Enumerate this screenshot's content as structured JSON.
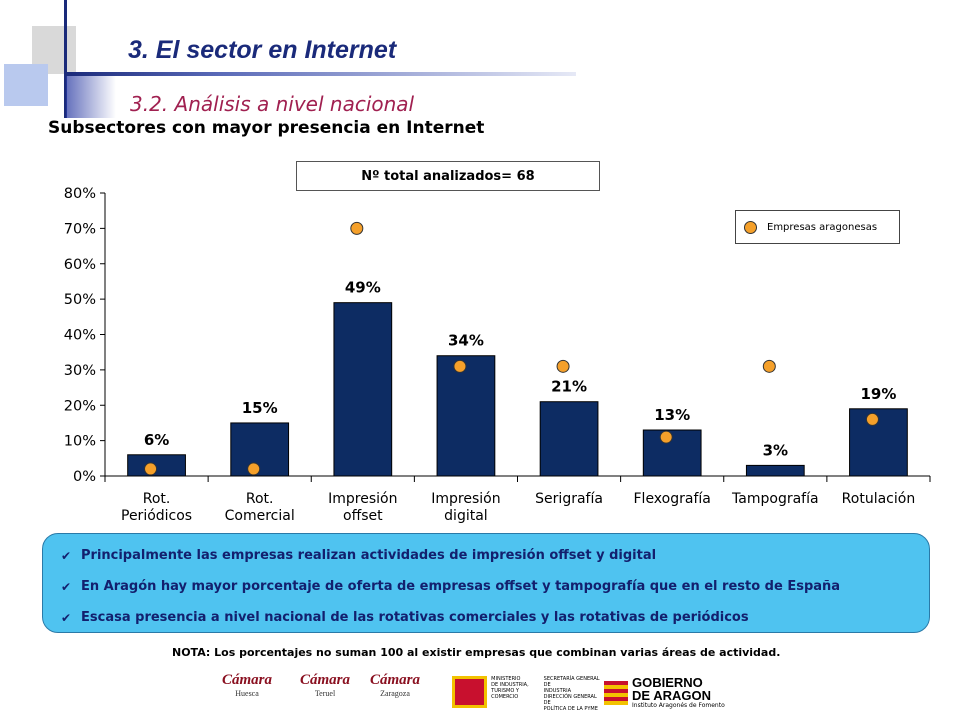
{
  "header": {
    "title": "3. El sector en Internet",
    "subtitle": "3.2. Análisis a nivel nacional"
  },
  "chart_heading": "Subsectores con mayor presencia en Internet",
  "total_box": "Nº total analizados= 68",
  "chart_data": {
    "type": "bar",
    "categories": [
      [
        "Rot.",
        "Periódicos"
      ],
      [
        "Rot.",
        "Comercial"
      ],
      [
        "Impresión",
        "offset"
      ],
      [
        "Impresión",
        "digital"
      ],
      [
        "Serigrafía"
      ],
      [
        "Flexografía"
      ],
      [
        "Tampografía"
      ],
      [
        "Rotulación"
      ]
    ],
    "values": [
      6,
      15,
      49,
      34,
      21,
      13,
      3,
      19
    ],
    "data_labels": [
      "6%",
      "15%",
      "49%",
      "34%",
      "21%",
      "13%",
      "3%",
      "19%"
    ],
    "series": [
      {
        "name": "",
        "kind": "bar",
        "values": [
          6,
          15,
          49,
          34,
          21,
          13,
          3,
          19
        ],
        "color": "#0d2c63"
      },
      {
        "name": "Empresas aragonesas",
        "kind": "marker",
        "values": [
          2,
          2,
          70,
          31,
          31,
          11,
          31,
          16
        ],
        "color": "#f5a02a"
      }
    ],
    "y_ticks": [
      "0%",
      "10%",
      "20%",
      "30%",
      "40%",
      "50%",
      "60%",
      "70%",
      "80%"
    ],
    "ylim": [
      0,
      80
    ],
    "grid": false,
    "legend_position": "top-right"
  },
  "legend": {
    "label": "Empresas aragonesas"
  },
  "notes": [
    "Principalmente  las empresas realizan actividades de impresión offset y digital",
    "En Aragón hay mayor porcentaje de oferta de empresas offset y tampografía que en el resto de España",
    "Escasa presencia a nivel nacional de las rotativas comerciales y las rotativas de periódicos"
  ],
  "footnote": "NOTA:  Los porcentajes no suman 100 al existir empresas que combinan varias áreas de actividad.",
  "logos": {
    "camara1": {
      "name": "Cámara",
      "city": "Huesca"
    },
    "camara2": {
      "name": "Cámara",
      "city": "Teruel"
    },
    "camara3": {
      "name": "Cámara",
      "city": "Zaragoza"
    },
    "ministerio": {
      "lines": [
        "MINISTERIO",
        "DE INDUSTRIA,",
        "TURISMO Y",
        "COMERCIO"
      ],
      "right_lines": [
        "SECRETARÍA GENERAL DE",
        "INDUSTRIA",
        "DIRECCIÓN GENERAL DE",
        "POLÍTICA DE LA PYME"
      ]
    },
    "gobierno": {
      "line1": "GOBIERNO",
      "line2": "DE ARAGON",
      "small": "Instituto Aragonés de Fomento"
    }
  },
  "colors": {
    "bar": "#0d2c63",
    "marker": "#f5a02a",
    "notes_bg": "#4fc3f0",
    "title": "#1a2a7a",
    "subtitle": "#a02050"
  }
}
